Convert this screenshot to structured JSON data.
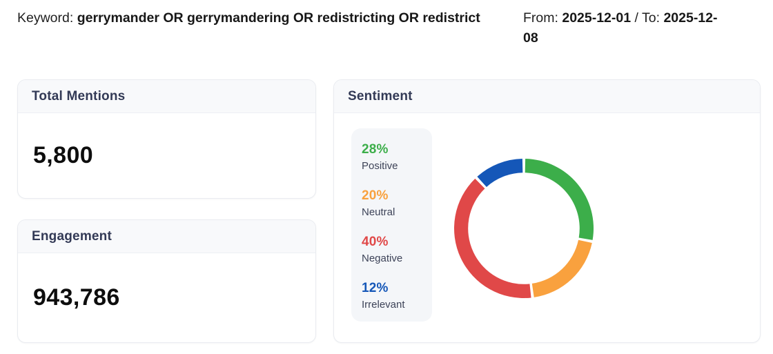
{
  "header": {
    "keyword_label": "Keyword: ",
    "keyword_value": "gerrymander OR gerrymandering OR redistricting OR redistrict",
    "from_label": "From: ",
    "from_value": "2025-12-01",
    "separator": " / ",
    "to_label": "To: ",
    "to_value": "2025-12-08"
  },
  "cards": {
    "total_mentions": {
      "title": "Total Mentions",
      "value": "5,800"
    },
    "engagement": {
      "title": "Engagement",
      "value": "943,786"
    },
    "sentiment": {
      "title": "Sentiment"
    }
  },
  "chart_data": {
    "type": "pie",
    "subtype": "donut",
    "title": "Sentiment",
    "labels": [
      "Positive",
      "Neutral",
      "Negative",
      "Irrelevant"
    ],
    "values": [
      28,
      20,
      40,
      12
    ],
    "unit": "%",
    "colors": [
      "#3cae4a",
      "#f9a13e",
      "#e04848",
      "#1557b8"
    ],
    "start_angle_deg": 0,
    "direction": "clockwise",
    "legend_position": "left",
    "inner_radius_ratio": 0.8,
    "pad_angle_deg": 2.4
  }
}
